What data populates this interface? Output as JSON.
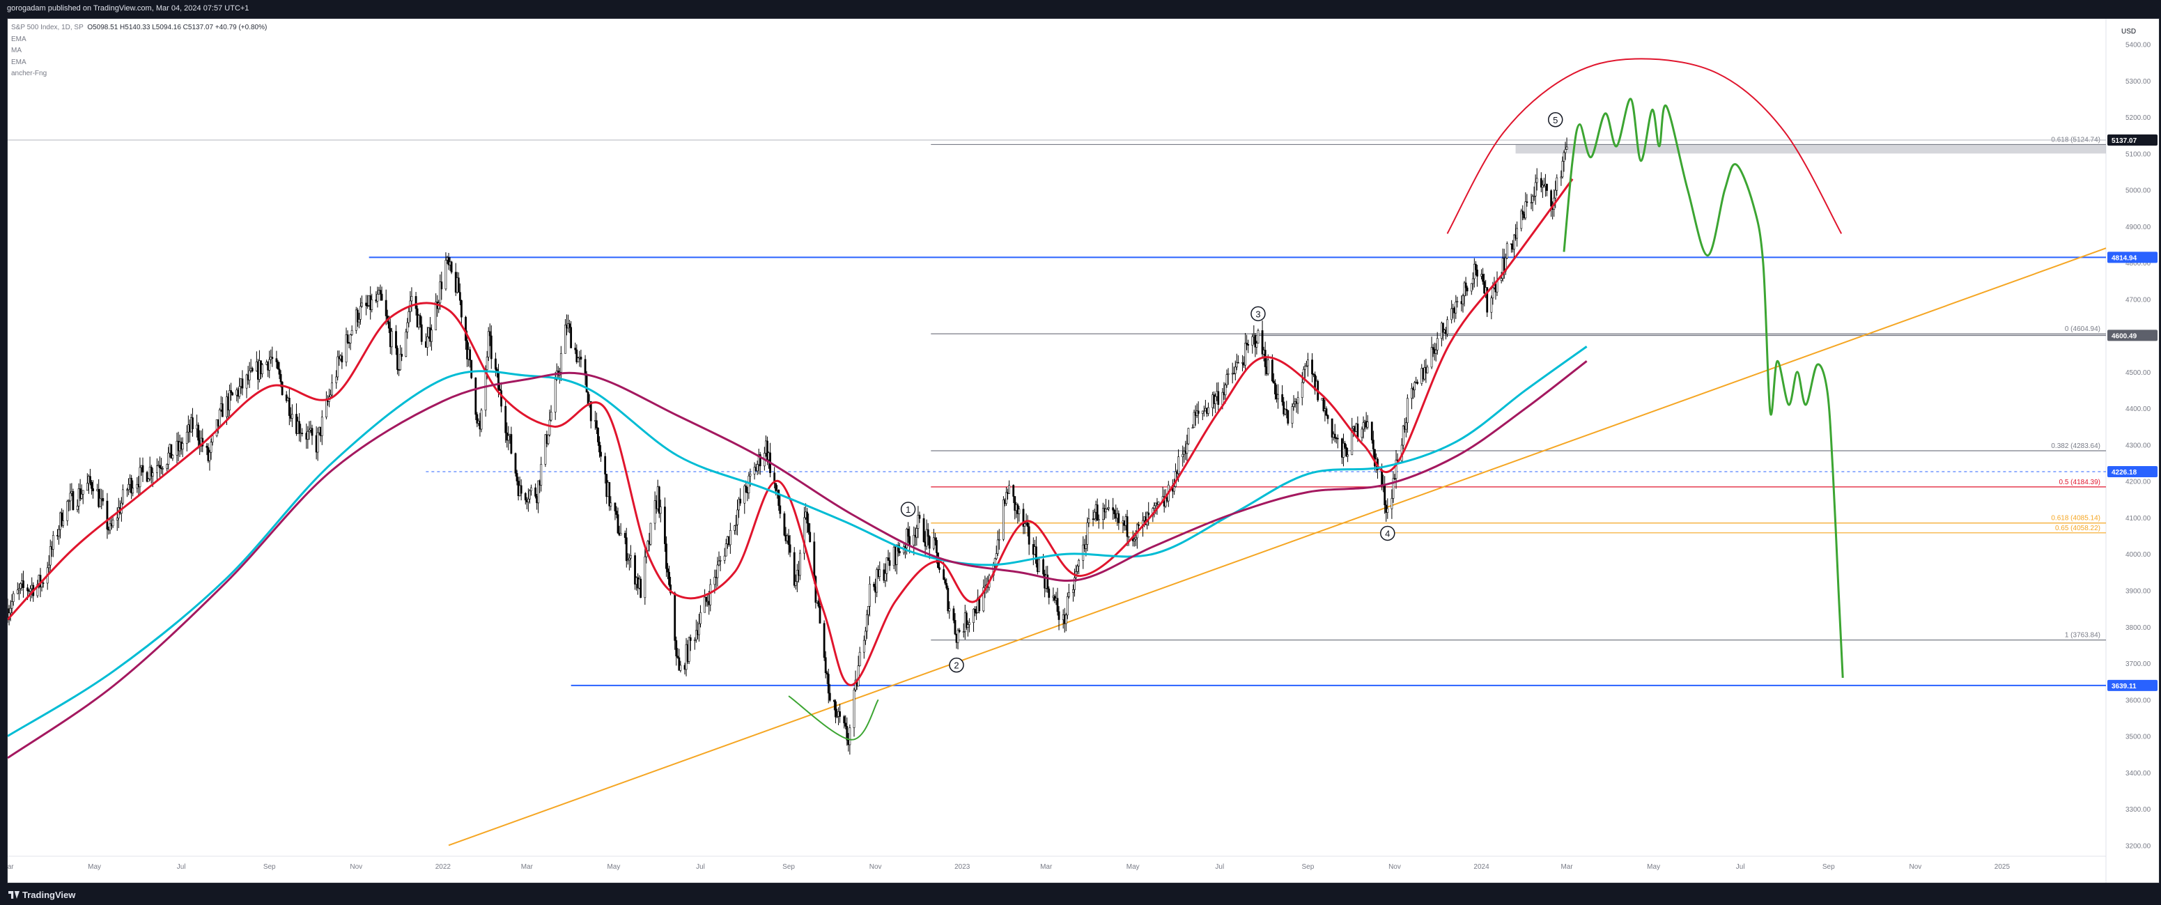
{
  "header": {
    "published": "gorogadam published on TradingView.com, Mar 04, 2024 07:57 UTC+1"
  },
  "footer": {
    "brand": "TradingView"
  },
  "legend": {
    "symbol": "S&P 500 Index, 1D, SP",
    "ohlc": "O5098.51 H5140.33 L5094.16 C5137.07 +40.79 (+0.80%)",
    "indicators": [
      "EMA",
      "MA",
      "EMA",
      "ancher-Fng"
    ]
  },
  "currency": "USD",
  "colors": {
    "background": "#ffffff",
    "candle": "#000000",
    "ema_fast": "#e0152d",
    "ma_slow": "#00bcd4",
    "ema_slow": "#a4185f",
    "trendline": "#f5a623",
    "projection": "#3ca532",
    "arc": "#e0152d",
    "blue_line": "#2962ff",
    "fib_gray": "#787b86",
    "fib_red": "#e0152d",
    "fib_orange": "#f5a623"
  },
  "chart_data": {
    "type": "candlestick",
    "title": "",
    "y_axis": {
      "ticks": [
        3200,
        3300,
        3400,
        3500,
        3600,
        3700,
        3800,
        3900,
        4000,
        4100,
        4200,
        4300,
        4400,
        4500,
        4600,
        4700,
        4800,
        4900,
        5000,
        5100,
        5200,
        5300,
        5400
      ],
      "range": [
        3170,
        5470
      ]
    },
    "x_axis": {
      "range": [
        "2021-03-01",
        "2025-03-15"
      ],
      "ticks": [
        {
          "label": "Mar",
          "date": "2021-03-01"
        },
        {
          "label": "May",
          "date": "2021-05-01"
        },
        {
          "label": "Jul",
          "date": "2021-07-01"
        },
        {
          "label": "Sep",
          "date": "2021-09-01"
        },
        {
          "label": "Nov",
          "date": "2021-11-01"
        },
        {
          "label": "2022",
          "date": "2022-01-01"
        },
        {
          "label": "Mar",
          "date": "2022-03-01"
        },
        {
          "label": "May",
          "date": "2022-05-01"
        },
        {
          "label": "Jul",
          "date": "2022-07-01"
        },
        {
          "label": "Sep",
          "date": "2022-09-01"
        },
        {
          "label": "Nov",
          "date": "2022-11-01"
        },
        {
          "label": "2023",
          "date": "2023-01-01"
        },
        {
          "label": "Mar",
          "date": "2023-03-01"
        },
        {
          "label": "May",
          "date": "2023-05-01"
        },
        {
          "label": "Jul",
          "date": "2023-07-01"
        },
        {
          "label": "Sep",
          "date": "2023-09-01"
        },
        {
          "label": "Nov",
          "date": "2023-11-01"
        },
        {
          "label": "2024",
          "date": "2024-01-01"
        },
        {
          "label": "Mar",
          "date": "2024-03-01"
        },
        {
          "label": "May",
          "date": "2024-05-01"
        },
        {
          "label": "Jul",
          "date": "2024-07-01"
        },
        {
          "label": "Sep",
          "date": "2024-09-01"
        },
        {
          "label": "Nov",
          "date": "2024-11-01"
        },
        {
          "label": "2025",
          "date": "2025-01-01"
        }
      ]
    },
    "price_path": [
      [
        "2021-03-01",
        3850
      ],
      [
        "2021-03-10",
        3900
      ],
      [
        "2021-03-25",
        3920
      ],
      [
        "2021-04-10",
        4130
      ],
      [
        "2021-04-30",
        4200
      ],
      [
        "2021-05-12",
        4060
      ],
      [
        "2021-05-25",
        4190
      ],
      [
        "2021-06-15",
        4250
      ],
      [
        "2021-06-30",
        4290
      ],
      [
        "2021-07-10",
        4360
      ],
      [
        "2021-07-20",
        4260
      ],
      [
        "2021-07-30",
        4400
      ],
      [
        "2021-08-15",
        4470
      ],
      [
        "2021-09-02",
        4540
      ],
      [
        "2021-09-20",
        4360
      ],
      [
        "2021-10-04",
        4300
      ],
      [
        "2021-10-20",
        4530
      ],
      [
        "2021-11-02",
        4660
      ],
      [
        "2021-11-18",
        4700
      ],
      [
        "2021-12-01",
        4510
      ],
      [
        "2021-12-10",
        4710
      ],
      [
        "2021-12-20",
        4560
      ],
      [
        "2022-01-03",
        4800
      ],
      [
        "2022-01-12",
        4720
      ],
      [
        "2022-01-27",
        4330
      ],
      [
        "2022-02-02",
        4590
      ],
      [
        "2022-02-24",
        4170
      ],
      [
        "2022-03-08",
        4170
      ],
      [
        "2022-03-29",
        4630
      ],
      [
        "2022-04-10",
        4490
      ],
      [
        "2022-04-29",
        4130
      ],
      [
        "2022-05-20",
        3900
      ],
      [
        "2022-06-01",
        4170
      ],
      [
        "2022-06-16",
        3670
      ],
      [
        "2022-07-08",
        3900
      ],
      [
        "2022-07-28",
        4130
      ],
      [
        "2022-08-16",
        4300
      ],
      [
        "2022-09-06",
        3910
      ],
      [
        "2022-09-13",
        4110
      ],
      [
        "2022-09-30",
        3590
      ],
      [
        "2022-10-13",
        3490
      ],
      [
        "2022-10-28",
        3900
      ],
      [
        "2022-11-15",
        4000
      ],
      [
        "2022-12-01",
        4080
      ],
      [
        "2022-12-13",
        4010
      ],
      [
        "2022-12-28",
        3780
      ],
      [
        "2023-01-19",
        3900
      ],
      [
        "2023-02-02",
        4180
      ],
      [
        "2023-02-20",
        4010
      ],
      [
        "2023-03-13",
        3810
      ],
      [
        "2023-04-03",
        4120
      ],
      [
        "2023-05-04",
        4060
      ],
      [
        "2023-05-25",
        4150
      ],
      [
        "2023-06-13",
        4370
      ],
      [
        "2023-07-03",
        4450
      ],
      [
        "2023-07-27",
        4600
      ],
      [
        "2023-08-18",
        4360
      ],
      [
        "2023-09-01",
        4515
      ],
      [
        "2023-09-25",
        4270
      ],
      [
        "2023-10-11",
        4380
      ],
      [
        "2023-10-27",
        4120
      ],
      [
        "2023-11-10",
        4400
      ],
      [
        "2023-12-01",
        4590
      ],
      [
        "2023-12-28",
        4790
      ],
      [
        "2024-01-05",
        4690
      ],
      [
        "2024-01-24",
        4870
      ],
      [
        "2024-02-09",
        5020
      ],
      [
        "2024-02-21",
        4970
      ],
      [
        "2024-03-01",
        5137
      ]
    ],
    "series": [
      {
        "name": "EMA",
        "color": "#e0152d",
        "points": [
          [
            "2021-03-01",
            3820
          ],
          [
            "2021-04-15",
            4010
          ],
          [
            "2021-06-01",
            4160
          ],
          [
            "2021-07-15",
            4300
          ],
          [
            "2021-09-01",
            4460
          ],
          [
            "2021-10-15",
            4430
          ],
          [
            "2021-11-25",
            4650
          ],
          [
            "2022-01-05",
            4670
          ],
          [
            "2022-02-10",
            4440
          ],
          [
            "2022-03-20",
            4350
          ],
          [
            "2022-04-25",
            4400
          ],
          [
            "2022-05-25",
            4000
          ],
          [
            "2022-06-20",
            3880
          ],
          [
            "2022-07-25",
            3950
          ],
          [
            "2022-08-25",
            4200
          ],
          [
            "2022-09-25",
            3850
          ],
          [
            "2022-10-15",
            3640
          ],
          [
            "2022-11-15",
            3870
          ],
          [
            "2022-12-15",
            3980
          ],
          [
            "2023-01-10",
            3870
          ],
          [
            "2023-02-15",
            4090
          ],
          [
            "2023-03-25",
            3940
          ],
          [
            "2023-05-15",
            4110
          ],
          [
            "2023-06-30",
            4390
          ],
          [
            "2023-08-01",
            4540
          ],
          [
            "2023-09-10",
            4440
          ],
          [
            "2023-10-10",
            4300
          ],
          [
            "2023-11-01",
            4240
          ],
          [
            "2023-12-10",
            4580
          ],
          [
            "2024-01-20",
            4790
          ],
          [
            "2024-03-05",
            5030
          ]
        ]
      },
      {
        "name": "MA",
        "color": "#00bcd4",
        "points": [
          [
            "2021-03-01",
            3500
          ],
          [
            "2021-05-15",
            3680
          ],
          [
            "2021-08-01",
            3930
          ],
          [
            "2021-10-15",
            4250
          ],
          [
            "2022-01-01",
            4480
          ],
          [
            "2022-03-01",
            4490
          ],
          [
            "2022-04-15",
            4450
          ],
          [
            "2022-06-15",
            4270
          ],
          [
            "2022-08-15",
            4180
          ],
          [
            "2022-10-10",
            4090
          ],
          [
            "2022-12-01",
            4000
          ],
          [
            "2023-01-20",
            3970
          ],
          [
            "2023-03-15",
            4000
          ],
          [
            "2023-05-15",
            4000
          ],
          [
            "2023-07-10",
            4110
          ],
          [
            "2023-09-01",
            4220
          ],
          [
            "2023-10-25",
            4240
          ],
          [
            "2023-12-15",
            4310
          ],
          [
            "2024-02-01",
            4450
          ],
          [
            "2024-03-15",
            4570
          ]
        ]
      },
      {
        "name": "EMA",
        "color": "#a4185f",
        "points": [
          [
            "2021-03-01",
            3440
          ],
          [
            "2021-05-15",
            3640
          ],
          [
            "2021-08-01",
            3920
          ],
          [
            "2021-10-15",
            4230
          ],
          [
            "2022-01-01",
            4420
          ],
          [
            "2022-03-01",
            4480
          ],
          [
            "2022-04-15",
            4490
          ],
          [
            "2022-06-15",
            4380
          ],
          [
            "2022-08-15",
            4260
          ],
          [
            "2022-10-15",
            4110
          ],
          [
            "2022-12-15",
            3990
          ],
          [
            "2023-02-10",
            3950
          ],
          [
            "2023-03-25",
            3930
          ],
          [
            "2023-05-15",
            4020
          ],
          [
            "2023-07-10",
            4110
          ],
          [
            "2023-09-01",
            4170
          ],
          [
            "2023-10-25",
            4190
          ],
          [
            "2023-12-15",
            4270
          ],
          [
            "2024-02-01",
            4400
          ],
          [
            "2024-03-15",
            4530
          ]
        ]
      }
    ],
    "horizontal_lines": [
      {
        "price": 4814.94,
        "label": "4814.94",
        "color": "#2962ff",
        "from": "2021-11-10"
      },
      {
        "price": 3639.11,
        "label": "3639.11",
        "color": "#2962ff",
        "from": "2022-04-01"
      },
      {
        "price": 5137.07,
        "label": "5137.07",
        "color": "#131722",
        "from": "2021-03-01",
        "style": "thin-gray"
      },
      {
        "price": 4226.18,
        "label": "4226.18",
        "color": "#2962ff",
        "from": "2021-12-20",
        "style": "dashed"
      },
      {
        "price": 4600.49,
        "label": "4600.49",
        "color": "#5d606b",
        "from": "2023-07-25",
        "style": "gray-tag"
      }
    ],
    "fib_levels": [
      {
        "price": 5124.74,
        "label": "0.618 (5124.74)",
        "color": "#787b86"
      },
      {
        "price": 4604.94,
        "label": "0 (4604.94)",
        "color": "#787b86"
      },
      {
        "price": 4283.64,
        "label": "0.382 (4283.64)",
        "color": "#787b86"
      },
      {
        "price": 4184.39,
        "label": "0.5 (4184.39)",
        "color": "#e0152d"
      },
      {
        "price": 4085.14,
        "label": "0.618 (4085.14)",
        "color": "#f5a623"
      },
      {
        "price": 4058.22,
        "label": "0.65 (4058.22)",
        "color": "#f5a623"
      },
      {
        "price": 3763.84,
        "label": "1 (3763.84)",
        "color": "#787b86"
      }
    ],
    "fib_start": "2022-12-10",
    "resistance_zone": {
      "from": "2024-01-25",
      "to": "2025-03-15",
      "y1": 5100,
      "y2": 5124.74
    },
    "trendline": {
      "from": [
        "2022-01-05",
        3200
      ],
      "to": [
        "2025-03-15",
        4840
      ]
    },
    "projection": [
      [
        "2024-02-28",
        4830
      ],
      [
        "2024-03-05",
        5080
      ],
      [
        "2024-03-10",
        5180
      ],
      [
        "2024-03-18",
        5090
      ],
      [
        "2024-03-28",
        5210
      ],
      [
        "2024-04-05",
        5120
      ],
      [
        "2024-04-15",
        5250
      ],
      [
        "2024-04-22",
        5080
      ],
      [
        "2024-04-30",
        5220
      ],
      [
        "2024-05-05",
        5120
      ],
      [
        "2024-05-10",
        5230
      ],
      [
        "2024-05-25",
        5000
      ],
      [
        "2024-06-08",
        4820
      ],
      [
        "2024-06-20",
        5000
      ],
      [
        "2024-06-28",
        5070
      ],
      [
        "2024-07-10",
        4960
      ],
      [
        "2024-07-17",
        4800
      ],
      [
        "2024-07-22",
        4390
      ],
      [
        "2024-07-27",
        4530
      ],
      [
        "2024-08-04",
        4410
      ],
      [
        "2024-08-10",
        4500
      ],
      [
        "2024-08-16",
        4410
      ],
      [
        "2024-08-24",
        4520
      ],
      [
        "2024-08-31",
        4450
      ],
      [
        "2024-09-04",
        4230
      ],
      [
        "2024-09-08",
        3900
      ],
      [
        "2024-09-11",
        3660
      ]
    ],
    "arc": [
      [
        "2023-12-08",
        4880
      ],
      [
        "2024-01-15",
        5150
      ],
      [
        "2024-03-01",
        5310
      ],
      [
        "2024-04-18",
        5360
      ],
      [
        "2024-06-15",
        5320
      ],
      [
        "2024-08-01",
        5160
      ],
      [
        "2024-09-10",
        4880
      ]
    ],
    "bottom_arc": [
      [
        "2022-09-01",
        3610
      ],
      [
        "2022-10-15",
        3490
      ],
      [
        "2022-11-03",
        3600
      ]
    ],
    "wave_labels": [
      {
        "label": "1",
        "date": "2022-11-24",
        "price": 4123
      },
      {
        "label": "2",
        "date": "2022-12-28",
        "price": 3695
      },
      {
        "label": "3",
        "date": "2023-07-28",
        "price": 4660
      },
      {
        "label": "4",
        "date": "2023-10-27",
        "price": 4057
      },
      {
        "label": "5",
        "date": "2024-02-22",
        "price": 5193
      }
    ]
  }
}
